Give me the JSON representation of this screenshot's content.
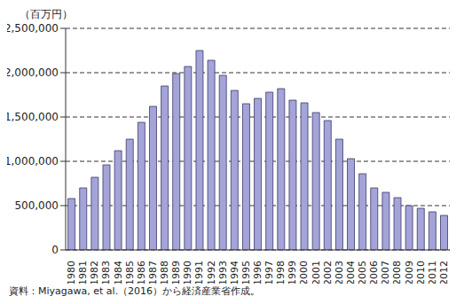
{
  "chart_data": {
    "type": "bar",
    "ylabel": "（百万円）",
    "source": "資料：Miyagawa, et al.（2016）から経済産業省作成。",
    "categories": [
      "1980",
      "1981",
      "1982",
      "1983",
      "1984",
      "1985",
      "1986",
      "1987",
      "1988",
      "1989",
      "1990",
      "1991",
      "1992",
      "1993",
      "1994",
      "1995",
      "1996",
      "1997",
      "1998",
      "1999",
      "2000",
      "2001",
      "2002",
      "2003",
      "2004",
      "2005",
      "2006",
      "2007",
      "2008",
      "2009",
      "2010",
      "2011",
      "2012"
    ],
    "values": [
      580000,
      700000,
      820000,
      960000,
      1120000,
      1250000,
      1440000,
      1620000,
      1850000,
      1990000,
      2070000,
      2250000,
      2140000,
      1970000,
      1800000,
      1650000,
      1710000,
      1780000,
      1820000,
      1690000,
      1660000,
      1550000,
      1460000,
      1250000,
      1030000,
      860000,
      700000,
      650000,
      590000,
      500000,
      470000,
      430000,
      390000
    ],
    "color": "#a4a4d8",
    "ylim": [
      0,
      2500000
    ],
    "yticks": [
      0,
      {
        "value": 500000,
        "label": "500,000"
      },
      {
        "value": 1000000,
        "label": "1,000,000"
      },
      {
        "value": 1500000,
        "label": "1,500,000"
      },
      {
        "value": 2000000,
        "label": "2,000,000"
      },
      {
        "value": 2500000,
        "label": "2,500,000"
      }
    ],
    "grid": true
  }
}
